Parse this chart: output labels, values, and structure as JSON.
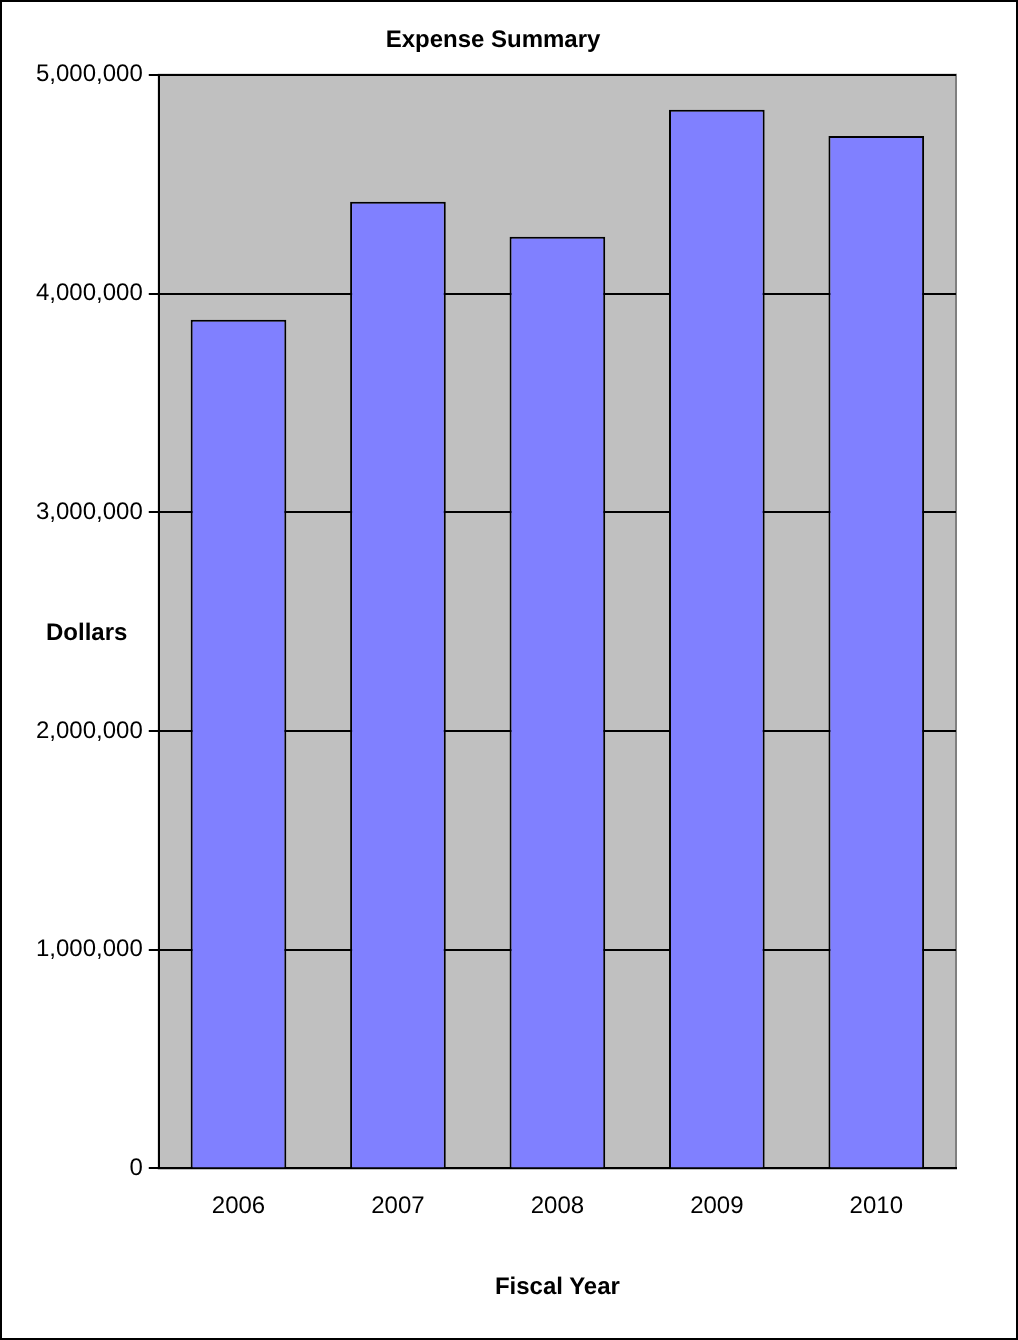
{
  "chart_data": {
    "type": "bar",
    "title": "Expense Summary",
    "xlabel": "Fiscal Year",
    "ylabel": "Dollars",
    "categories": [
      "2006",
      "2007",
      "2008",
      "2009",
      "2010"
    ],
    "series": [
      {
        "color": "#8080ff",
        "values": [
          3880000,
          4420000,
          4260000,
          4840000,
          4720000
        ]
      }
    ],
    "ylim": [
      0,
      5000000
    ],
    "yticks": [
      {
        "value": 0,
        "label": "0"
      },
      {
        "value": 1000000,
        "label": "1,000,000"
      },
      {
        "value": 2000000,
        "label": "2,000,000"
      },
      {
        "value": 3000000,
        "label": "3,000,000"
      },
      {
        "value": 4000000,
        "label": "4,000,000"
      },
      {
        "value": 5000000,
        "label": "5,000,000"
      }
    ],
    "grid": "y",
    "legend": false
  }
}
